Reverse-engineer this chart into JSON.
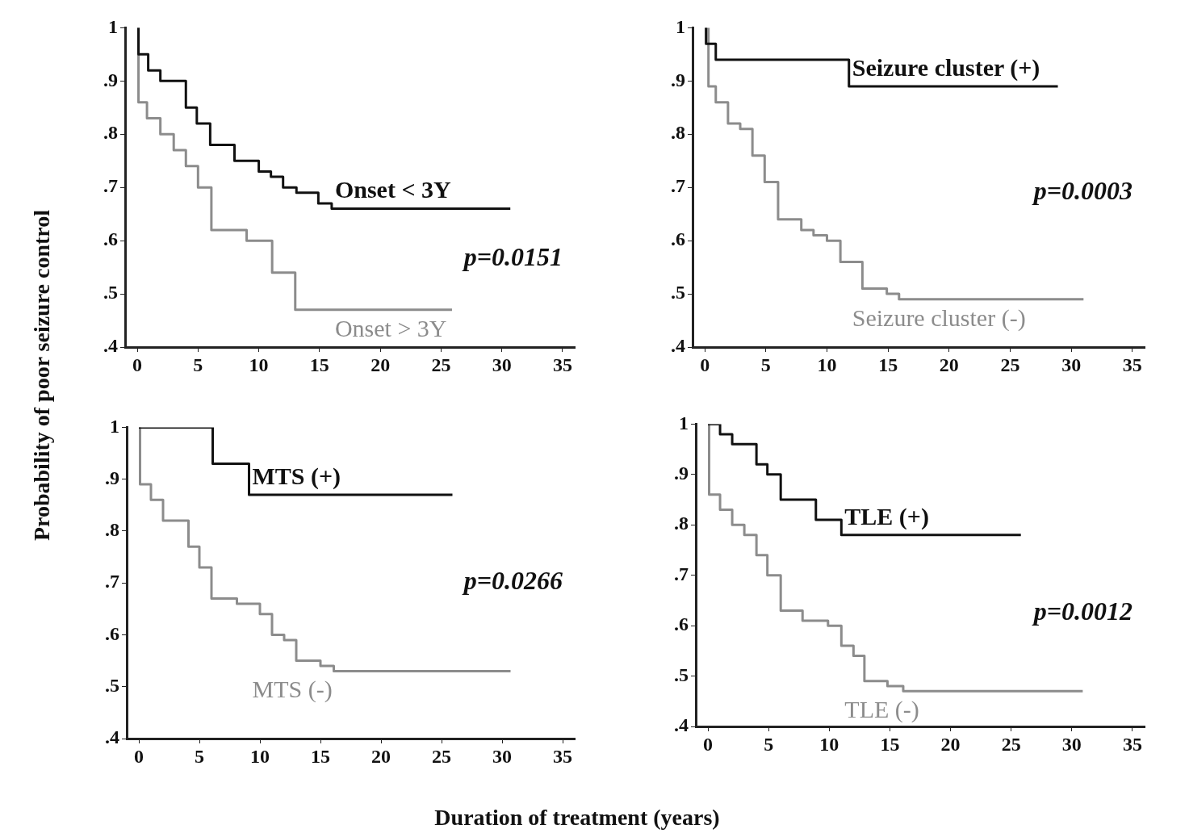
{
  "chart_data": [
    {
      "type": "step",
      "ylabel": "Probability of poor seizure control",
      "xlim": [
        -1,
        36
      ],
      "ylim": [
        0.4,
        1
      ],
      "xticks": [
        0,
        5,
        10,
        15,
        20,
        25,
        30,
        35
      ],
      "yticks": [
        {
          "value": 1,
          "label": "1"
        },
        {
          "value": 0.9,
          "label": ".9"
        },
        {
          "value": 0.8,
          "label": ".8"
        },
        {
          "value": 0.7,
          "label": ".7"
        },
        {
          "value": 0.6,
          "label": ".6"
        },
        {
          "value": 0.5,
          "label": ".5"
        },
        {
          "value": 0.4,
          "label": ".4"
        }
      ],
      "grid": false,
      "legend": false,
      "annotations": [
        "p=0.0151"
      ],
      "series": [
        {
          "name": "Onset < 3Y",
          "color": "#111111",
          "x": [
            0,
            0.1,
            0.9,
            1.9,
            4.0,
            4.9,
            6.0,
            8.0,
            10.0,
            11.0,
            12.0,
            13.1,
            14.9,
            16.0,
            30.7
          ],
          "values": [
            1,
            0.95,
            0.92,
            0.9,
            0.85,
            0.82,
            0.78,
            0.75,
            0.73,
            0.72,
            0.7,
            0.69,
            0.67,
            0.66,
            0.66
          ]
        },
        {
          "name": "Onset > 3Y",
          "color": "#8c8c8c",
          "x": [
            0,
            0.1,
            0.8,
            1.9,
            3.0,
            4.0,
            5.0,
            6.1,
            9.0,
            11.1,
            13.0,
            25.9
          ],
          "values": [
            1,
            0.86,
            0.83,
            0.8,
            0.77,
            0.74,
            0.7,
            0.62,
            0.6,
            0.54,
            0.47,
            0.47
          ]
        }
      ]
    },
    {
      "type": "step",
      "xlim": [
        -1,
        36
      ],
      "ylim": [
        0.4,
        1
      ],
      "xticks": [
        0,
        5,
        10,
        15,
        20,
        25,
        30,
        35
      ],
      "yticks": [
        {
          "value": 1,
          "label": "1"
        },
        {
          "value": 0.9,
          "label": ".9"
        },
        {
          "value": 0.8,
          "label": ".8"
        },
        {
          "value": 0.7,
          "label": ".7"
        },
        {
          "value": 0.6,
          "label": ".6"
        },
        {
          "value": 0.5,
          "label": ".5"
        },
        {
          "value": 0.4,
          "label": ".4"
        }
      ],
      "grid": false,
      "legend": false,
      "annotations": [
        "p=0.0003"
      ],
      "series": [
        {
          "name": "Seizure cluster (+)",
          "color": "#111111",
          "x": [
            0,
            0.1,
            0.9,
            11.8,
            28.9
          ],
          "values": [
            1,
            0.97,
            0.94,
            0.89,
            0.89
          ]
        },
        {
          "name": "Seizure cluster (-)",
          "color": "#8c8c8c",
          "x": [
            0,
            0.3,
            0.9,
            1.9,
            2.9,
            3.9,
            4.9,
            6.0,
            7.9,
            8.9,
            10.0,
            11.1,
            12.9,
            14.9,
            15.9,
            31
          ],
          "values": [
            1,
            0.89,
            0.86,
            0.82,
            0.81,
            0.76,
            0.71,
            0.64,
            0.62,
            0.61,
            0.6,
            0.56,
            0.51,
            0.5,
            0.49,
            0.49
          ]
        }
      ]
    },
    {
      "type": "step",
      "xlabel": "Duration of treatment (years)",
      "xlim": [
        -1,
        36
      ],
      "ylim": [
        0.4,
        1
      ],
      "xticks": [
        0,
        5,
        10,
        15,
        20,
        25,
        30,
        35
      ],
      "yticks": [
        {
          "value": 1,
          "label": "1"
        },
        {
          "value": 0.9,
          "label": ".9"
        },
        {
          "value": 0.8,
          "label": ".8"
        },
        {
          "value": 0.7,
          "label": ".7"
        },
        {
          "value": 0.6,
          "label": ".6"
        },
        {
          "value": 0.5,
          "label": ".5"
        },
        {
          "value": 0.4,
          "label": ".4"
        }
      ],
      "grid": false,
      "legend": false,
      "annotations": [
        "p=0.0266"
      ],
      "series": [
        {
          "name": "MTS (+)",
          "color": "#111111",
          "x": [
            0,
            6.1,
            9.1,
            25.9
          ],
          "values": [
            1,
            0.93,
            0.87,
            0.87
          ]
        },
        {
          "name": "MTS (-)",
          "color": "#8c8c8c",
          "x": [
            0,
            0.1,
            1.0,
            2.0,
            4.1,
            5.0,
            6.0,
            8.1,
            10.0,
            11.0,
            12.0,
            13.0,
            15.0,
            16.1,
            30.7
          ],
          "values": [
            1,
            0.89,
            0.86,
            0.82,
            0.77,
            0.73,
            0.67,
            0.66,
            0.64,
            0.6,
            0.59,
            0.55,
            0.54,
            0.53,
            0.53
          ]
        }
      ]
    },
    {
      "type": "step",
      "xlim": [
        -1,
        36
      ],
      "ylim": [
        0.4,
        1
      ],
      "xticks": [
        0,
        5,
        10,
        15,
        20,
        25,
        30,
        35
      ],
      "yticks": [
        {
          "value": 1,
          "label": "1"
        },
        {
          "value": 0.9,
          "label": ".9"
        },
        {
          "value": 0.8,
          "label": ".8"
        },
        {
          "value": 0.7,
          "label": ".7"
        },
        {
          "value": 0.6,
          "label": ".6"
        },
        {
          "value": 0.5,
          "label": ".5"
        },
        {
          "value": 0.4,
          "label": ".4"
        }
      ],
      "grid": false,
      "legend": false,
      "annotations": [
        "p=0.0012"
      ],
      "series": [
        {
          "name": "TLE (+)",
          "color": "#111111",
          "x": [
            0,
            1.0,
            2.0,
            4.0,
            4.9,
            6.0,
            8.9,
            11.0,
            25.8
          ],
          "values": [
            1,
            0.98,
            0.96,
            0.92,
            0.9,
            0.85,
            0.81,
            0.78,
            0.78
          ]
        },
        {
          "name": "TLE (-)",
          "color": "#8c8c8c",
          "x": [
            0,
            0.1,
            1.0,
            2.0,
            3.0,
            4.0,
            4.9,
            6.0,
            7.8,
            9.9,
            11.0,
            12.0,
            12.9,
            14.8,
            16.1,
            30.9
          ],
          "values": [
            1,
            0.86,
            0.83,
            0.8,
            0.78,
            0.74,
            0.7,
            0.63,
            0.61,
            0.6,
            0.56,
            0.54,
            0.49,
            0.48,
            0.47,
            0.47
          ]
        }
      ]
    }
  ]
}
